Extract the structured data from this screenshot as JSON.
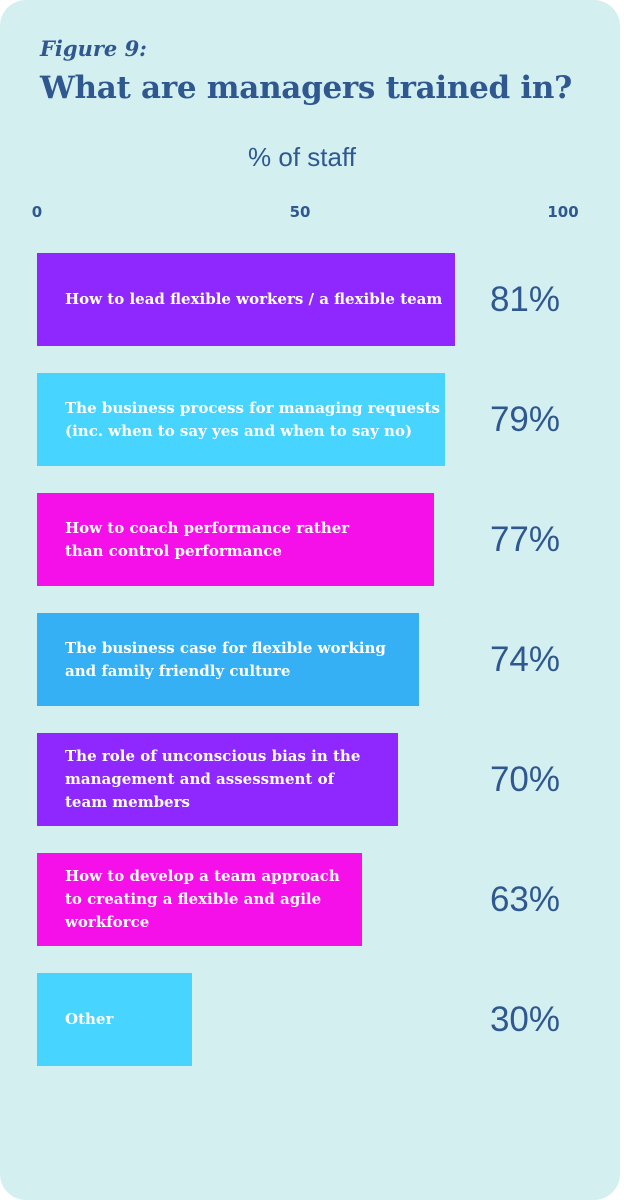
{
  "figure_label": "Figure 9:",
  "chart_data": {
    "type": "bar",
    "orientation": "horizontal",
    "title": "What are managers trained in?",
    "xlabel": "% of staff",
    "xlim": [
      0,
      100
    ],
    "ticks": [
      "0",
      "50",
      "100"
    ],
    "categories": [
      "How to lead flexible workers / a flexible team",
      "The business process for managing requests\n(inc. when to say yes and when to say no)",
      "How to coach performance rather\nthan control performance",
      "The business case for flexible working\nand family friendly culture",
      "The role of unconscious bias in the\nmanagement and assessment of\nteam members",
      "How to develop a team approach\nto creating a flexible and agile\nworkforce",
      "Other"
    ],
    "values": [
      81,
      79,
      77,
      74,
      70,
      63,
      30
    ],
    "value_labels": [
      "81%",
      "79%",
      "77%",
      "74%",
      "70%",
      "63%",
      "30%"
    ],
    "colors": [
      "#8f28ff",
      "#47d4ff",
      "#f50fe9",
      "#36b0f4",
      "#8f28ff",
      "#f50fe9",
      "#47d4ff"
    ],
    "grid": false,
    "legend": "none"
  }
}
